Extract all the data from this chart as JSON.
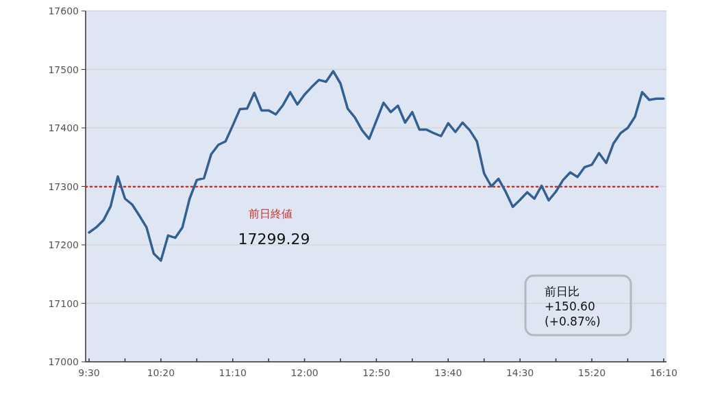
{
  "chart_data": {
    "type": "line",
    "x": [
      9.5,
      9.5833,
      9.6667,
      9.75,
      9.8333,
      9.9167,
      10,
      10.0833,
      10.1667,
      10.25,
      10.3333,
      10.4167,
      10.5,
      10.5833,
      10.6667,
      10.75,
      10.8333,
      10.9167,
      11,
      11.0833,
      11.1667,
      11.25,
      11.3333,
      11.4167,
      11.5,
      11.5833,
      11.6667,
      11.75,
      11.8333,
      11.9167,
      12,
      12.0833,
      12.1667,
      12.25,
      12.3333,
      12.4167,
      12.5,
      12.5833,
      12.6667,
      12.75,
      12.8333,
      12.9167,
      13,
      13.0833,
      13.1667,
      13.25,
      13.3333,
      13.4167,
      13.5,
      13.5833,
      13.6667,
      13.75,
      13.8333,
      13.9167,
      14,
      14.0833,
      14.1667,
      14.25,
      14.3333,
      14.4167,
      14.5,
      14.5833,
      14.6667,
      14.75,
      14.8333,
      14.9167,
      15,
      15.0833,
      15.1667,
      15.25,
      15.3333,
      15.4167,
      15.5,
      15.5833,
      15.6667,
      15.75,
      15.8333,
      15.9167,
      16,
      16.0833,
      16.1667
    ],
    "series": [
      {
        "color": "#335f93",
        "values": [
          17221,
          17230,
          17242,
          17266,
          17317,
          17279,
          17269,
          17250,
          17230,
          17185,
          17173,
          17216,
          17212,
          17230,
          17279,
          17311,
          17314,
          17355,
          17371,
          17377,
          17404,
          17432,
          17433,
          17460,
          17430,
          17430,
          17423,
          17439,
          17461,
          17440,
          17457,
          17470,
          17482,
          17479,
          17497,
          17476,
          17433,
          17418,
          17396,
          17381,
          17412,
          17443,
          17427,
          17438,
          17409,
          17427,
          17397,
          17397,
          17391,
          17386,
          17408,
          17393,
          17409,
          17396,
          17377,
          17322,
          17300,
          17313,
          17291,
          17265,
          17277,
          17290,
          17279,
          17301,
          17276,
          17291,
          17311,
          17324,
          17316,
          17333,
          17337,
          17357,
          17340,
          17373,
          17391,
          17400,
          17419,
          17461,
          17448,
          17450,
          17450
        ]
      }
    ],
    "xlim": [
      9.46,
      16.2
    ],
    "xticks": [
      {
        "value": 9.5,
        "label": "9:30"
      },
      {
        "value": 9.9167,
        "label": null
      },
      {
        "value": 10.3333,
        "label": "10:20"
      },
      {
        "value": 10.75,
        "label": null
      },
      {
        "value": 11.1667,
        "label": "11:10"
      },
      {
        "value": 11.5833,
        "label": null
      },
      {
        "value": 12,
        "label": "12:00"
      },
      {
        "value": 12.4167,
        "label": null
      },
      {
        "value": 12.8333,
        "label": "12:50"
      },
      {
        "value": 13.25,
        "label": null
      },
      {
        "value": 13.6667,
        "label": "13:40"
      },
      {
        "value": 14.0833,
        "label": null
      },
      {
        "value": 14.5,
        "label": "14:30"
      },
      {
        "value": 14.9167,
        "label": null
      },
      {
        "value": 15.3333,
        "label": "15:20"
      },
      {
        "value": 15.75,
        "label": null
      },
      {
        "value": 16.1667,
        "label": "16:10"
      }
    ],
    "ylim": [
      17000,
      17600
    ],
    "yticks": [
      17000,
      17100,
      17200,
      17300,
      17400,
      17500,
      17600
    ],
    "grid": "y",
    "marker": "none",
    "line_style": "solid",
    "ref_lines": [
      {
        "axis": "y",
        "value": 17299.29,
        "label": "前日終値",
        "color": "#c9302c",
        "line_style": "dotted"
      }
    ],
    "annotations": [
      "17299.29",
      "前日比\n+150.60\n(+0.87%)"
    ]
  }
}
